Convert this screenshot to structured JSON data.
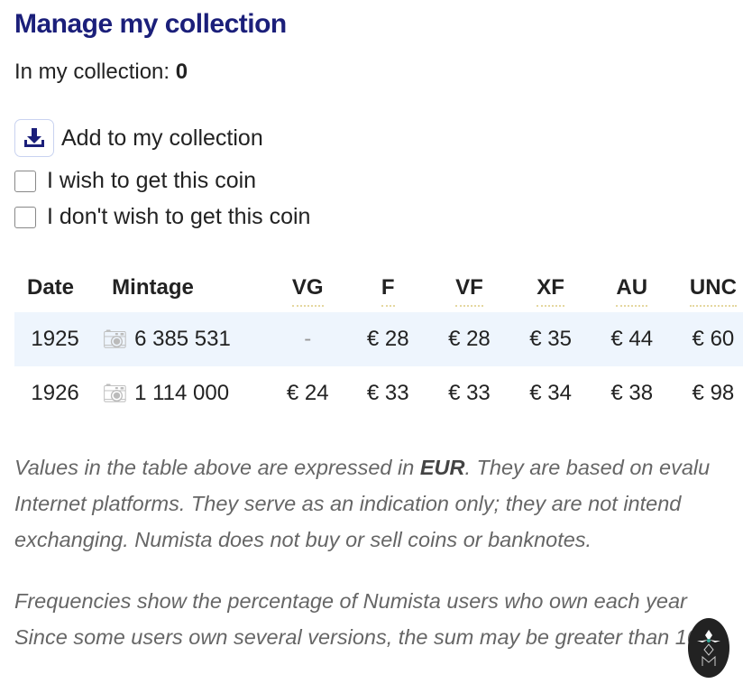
{
  "title": "Manage my collection",
  "collection": {
    "label": "In my collection:",
    "count": "0"
  },
  "actions": {
    "add": "Add to my collection",
    "wish": "I wish to get this coin",
    "nowish": "I don't wish to get this coin"
  },
  "table": {
    "headers": [
      "Date",
      "Mintage",
      "VG",
      "F",
      "VF",
      "XF",
      "AU",
      "UNC"
    ],
    "rows": [
      {
        "date": "1925",
        "mintage": "6 385 531",
        "vg": "-",
        "f": "€ 28",
        "vf": "€ 28",
        "xf": "€ 35",
        "au": "€ 44",
        "unc": "€ 60"
      },
      {
        "date": "1926",
        "mintage": "1 114 000",
        "vg": "€ 24",
        "f": "€ 33",
        "vf": "€ 33",
        "xf": "€ 34",
        "au": "€ 38",
        "unc": "€ 98"
      }
    ]
  },
  "notes": {
    "l1a": "Values in the table above are expressed in ",
    "l1b": "EUR",
    "l1c": ". They are based on evalu",
    "l2": "Internet platforms. They serve as an indication only; they are not intend",
    "l3": "exchanging. Numista does not buy or sell coins or banknotes.",
    "l4": "Frequencies show the percentage of Numista users who own each year",
    "l5": "Since some users own several versions, the sum may be greater than 10"
  }
}
